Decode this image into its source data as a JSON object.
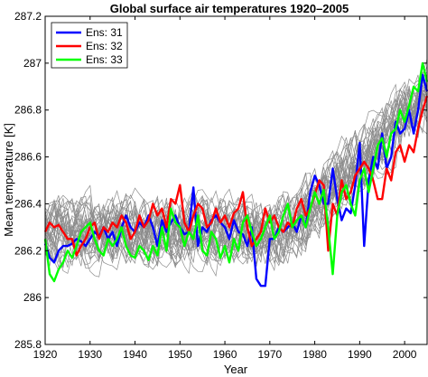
{
  "chart_data": {
    "type": "line",
    "title": "Global  surface  air  temperatures 1920–2005",
    "xlabel": "Year",
    "ylabel": "Mean  temperature [K]",
    "xlim": [
      1920,
      2005
    ],
    "ylim": [
      285.8,
      287.2
    ],
    "xticks": [
      1920,
      1930,
      1940,
      1950,
      1960,
      1970,
      1980,
      1990,
      2000
    ],
    "xtick_labels": [
      "1920",
      "1930",
      "1940",
      "1950",
      "1960",
      "1970",
      "1980",
      "1990",
      "2000"
    ],
    "yticks": [
      285.8,
      286,
      286.2,
      286.4,
      286.6,
      286.8,
      287,
      287.2
    ],
    "ytick_labels": [
      "285.8",
      "286",
      "286.2",
      "286.4",
      "286.6",
      "286.8",
      "287",
      "287.2"
    ],
    "legend_position": "top-left",
    "grid": false,
    "ensemble_color": "#8c8c8c",
    "ensemble_count": 30,
    "series": [
      {
        "name": "Ens: 31",
        "color": "#0000ff",
        "x_start": 1920,
        "values": [
          286.23,
          286.17,
          286.15,
          286.2,
          286.22,
          286.22,
          286.23,
          286.25,
          286.24,
          286.22,
          286.25,
          286.28,
          286.26,
          286.3,
          286.25,
          286.28,
          286.22,
          286.3,
          286.35,
          286.3,
          286.28,
          286.32,
          286.3,
          286.35,
          286.3,
          286.22,
          286.33,
          286.28,
          286.32,
          286.35,
          286.3,
          286.27,
          286.28,
          286.47,
          286.22,
          286.3,
          286.28,
          286.33,
          286.35,
          286.32,
          286.3,
          286.25,
          286.33,
          286.28,
          286.27,
          286.22,
          286.3,
          286.08,
          286.05,
          286.05,
          286.25,
          286.25,
          286.3,
          286.28,
          286.3,
          286.32,
          286.28,
          286.35,
          286.3,
          286.45,
          286.52,
          286.48,
          286.4,
          286.4,
          286.55,
          286.42,
          286.33,
          286.38,
          286.36,
          286.48,
          286.66,
          286.22,
          286.5,
          286.6,
          286.55,
          286.7,
          286.55,
          286.6,
          286.75,
          286.7,
          286.72,
          286.8,
          286.7,
          286.8,
          286.95,
          286.88
        ]
      },
      {
        "name": "Ens: 32",
        "color": "#ff0000",
        "x_start": 1920,
        "values": [
          286.28,
          286.32,
          286.3,
          286.31,
          286.28,
          286.25,
          286.25,
          286.18,
          286.22,
          286.25,
          286.3,
          286.32,
          286.25,
          286.3,
          286.28,
          286.32,
          286.3,
          286.35,
          286.32,
          286.25,
          286.28,
          286.35,
          286.3,
          286.33,
          286.4,
          286.35,
          286.38,
          286.3,
          286.42,
          286.4,
          286.48,
          286.32,
          286.28,
          286.35,
          286.4,
          286.38,
          286.3,
          286.32,
          286.38,
          286.32,
          286.35,
          286.3,
          286.36,
          286.38,
          286.45,
          286.3,
          286.22,
          286.25,
          286.28,
          286.38,
          286.32,
          286.35,
          286.3,
          286.28,
          286.32,
          286.3,
          286.38,
          286.42,
          286.35,
          286.38,
          286.44,
          286.5,
          286.48,
          286.2,
          286.4,
          286.35,
          286.5,
          286.42,
          286.45,
          286.52,
          286.55,
          286.58,
          286.55,
          286.5,
          286.42,
          286.42,
          286.55,
          286.5,
          286.62,
          286.65,
          286.58,
          286.65,
          286.62,
          286.72,
          286.8,
          286.86
        ]
      },
      {
        "name": "Ens: 33",
        "color": "#00ff00",
        "x_start": 1920,
        "values": [
          286.25,
          286.1,
          286.07,
          286.12,
          286.15,
          286.2,
          286.17,
          286.22,
          286.28,
          286.3,
          286.32,
          286.25,
          286.2,
          286.18,
          286.25,
          286.22,
          286.25,
          286.3,
          286.22,
          286.18,
          286.17,
          286.22,
          286.2,
          286.16,
          286.22,
          286.18,
          286.3,
          286.2,
          286.38,
          286.32,
          286.3,
          286.22,
          286.28,
          286.25,
          286.35,
          286.2,
          286.18,
          286.28,
          286.25,
          286.17,
          286.22,
          286.15,
          286.25,
          286.2,
          286.32,
          286.35,
          286.28,
          286.22,
          286.25,
          286.3,
          286.35,
          286.25,
          286.28,
          286.35,
          286.4,
          286.3,
          286.33,
          286.35,
          286.3,
          286.38,
          286.45,
          286.4,
          286.46,
          286.3,
          286.1,
          286.35,
          286.45,
          286.48,
          286.4,
          286.35,
          286.5,
          286.55,
          286.45,
          286.55,
          286.65,
          286.68,
          286.6,
          286.7,
          286.72,
          286.8,
          286.75,
          286.82,
          286.9,
          286.88,
          287.0,
          286.92
        ]
      }
    ]
  }
}
